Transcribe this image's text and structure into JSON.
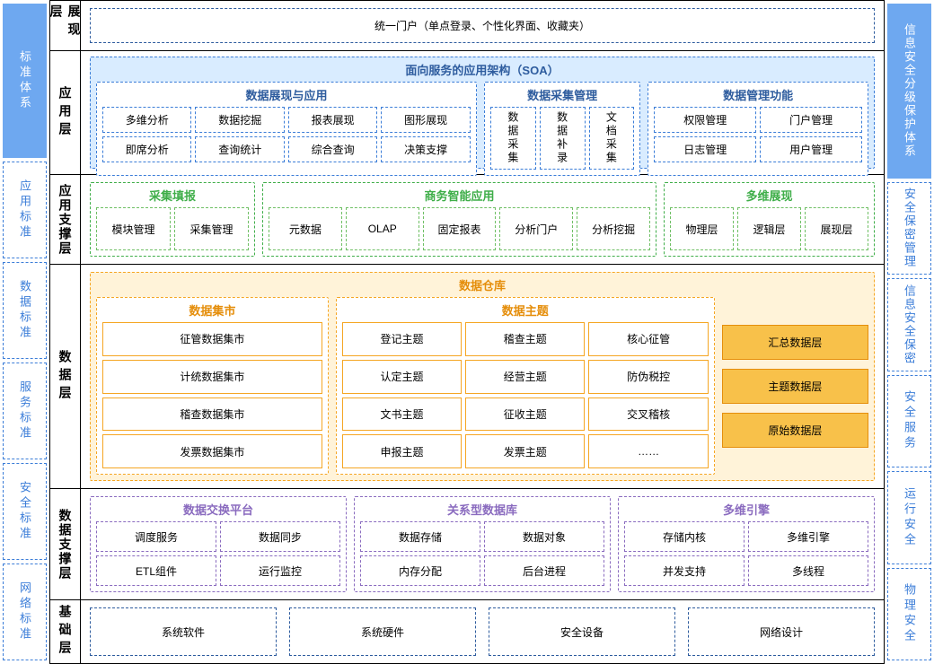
{
  "colors": {
    "blue": "#3b7dd8",
    "blue_bg": "#d9ecff",
    "blue_fill": "#6ea8f0",
    "green": "#3fae49",
    "green_light": "#6fbf64",
    "orange": "#f5a623",
    "orange_dark": "#e58e0b",
    "orange_bg": "#fff3d9",
    "orange_fill": "#f8c14a",
    "purple": "#8a6bbf",
    "dark_blue": "#2e5c9e"
  },
  "left_sidebar": {
    "top": "标准体系",
    "items": [
      "应用标准",
      "数据标准",
      "服务标准",
      "安全标准",
      "网络标准"
    ]
  },
  "right_sidebar": {
    "top": "信息安全分级保护体系",
    "items": [
      "安全保密管理",
      "信息安全保密",
      "安全服务",
      "运行安全",
      "物理安全"
    ]
  },
  "layer1": {
    "label": "展现层",
    "box": "统一门户（单点登录、个性化界面、收藏夹）"
  },
  "layer2": {
    "label": "应用层",
    "title": "面向服务的应用架构（SOA）",
    "g1": {
      "title": "数据展现与应用",
      "items": [
        "多维分析",
        "数据挖掘",
        "报表展现",
        "图形展现",
        "即席分析",
        "查询统计",
        "综合查询",
        "决策支撑"
      ]
    },
    "g2": {
      "title": "数据采集管理",
      "items": [
        "数据采集",
        "数据补录",
        "文档采集"
      ]
    },
    "g3": {
      "title": "数据管理功能",
      "items": [
        "权限管理",
        "门户管理",
        "日志管理",
        "用户管理"
      ]
    }
  },
  "layer3": {
    "label": "应用支撑层",
    "g1": {
      "title": "采集填报",
      "items": [
        "模块管理",
        "采集管理"
      ]
    },
    "g2": {
      "title": "商务智能应用",
      "items": [
        "元数据",
        "OLAP",
        "固定报表",
        "分析门户",
        "分析挖掘"
      ]
    },
    "g3": {
      "title": "多维展现",
      "items": [
        "物理层",
        "逻辑层",
        "展现层"
      ]
    }
  },
  "layer4": {
    "label": "数据层",
    "title": "数据仓库",
    "g1": {
      "title": "数据集市",
      "items": [
        "征管数据集市",
        "计统数据集市",
        "稽查数据集市",
        "发票数据集市"
      ]
    },
    "g2": {
      "title": "数据主题",
      "items": [
        "登记主题",
        "稽查主题",
        "核心征管",
        "认定主题",
        "经营主题",
        "防伪税控",
        "文书主题",
        "征收主题",
        "交叉稽核",
        "申报主题",
        "发票主题",
        "……"
      ]
    },
    "side": [
      "汇总数据层",
      "主题数据层",
      "原始数据层"
    ]
  },
  "layer5": {
    "label": "数据支撑层",
    "g1": {
      "title": "数据交换平台",
      "items": [
        "调度服务",
        "数据同步",
        "ETL组件",
        "运行监控"
      ]
    },
    "g2": {
      "title": "关系型数据库",
      "items": [
        "数据存储",
        "数据对象",
        "内存分配",
        "后台进程"
      ]
    },
    "g3": {
      "title": "多维引擎",
      "items": [
        "存储内核",
        "多维引擎",
        "并发支持",
        "多线程"
      ]
    }
  },
  "layer6": {
    "label": "基础层",
    "items": [
      "系统软件",
      "系统硬件",
      "安全设备",
      "网络设计"
    ]
  }
}
